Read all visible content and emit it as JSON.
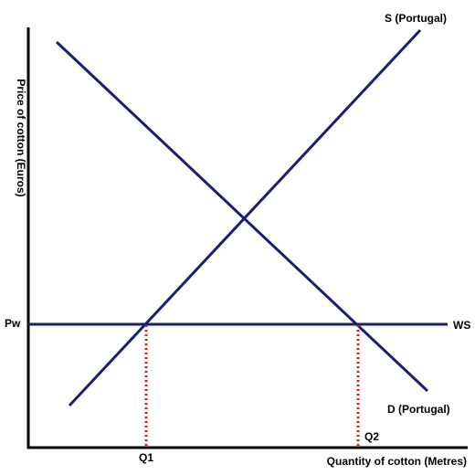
{
  "diagram": {
    "y_axis_label": "Price of cotton (Euros)",
    "x_axis_label": "Quantity of cotton (Metres)",
    "supply_label": "S (Portugal)",
    "demand_label": "D (Portugal)",
    "world_supply_label": "WS",
    "world_price_label": "Pw",
    "q1_label": "Q1",
    "q2_label": "Q2"
  },
  "colors": {
    "curves": "#1a1f6e",
    "axes": "#000000",
    "guides": "#e01818"
  }
}
